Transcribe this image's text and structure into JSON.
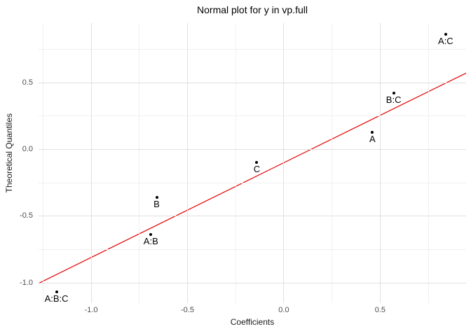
{
  "chart_data": {
    "type": "scatter",
    "title": "Normal plot for y in vp.full",
    "xlabel": "Coefficients",
    "ylabel": "Theoretical Quantiles",
    "xlim": [
      -1.273,
      0.946
    ],
    "ylim": [
      -1.152,
      0.946
    ],
    "grid": true,
    "legend": false,
    "x_axis": {
      "major_ticks": [
        -1.0,
        -0.5,
        0.0,
        0.5
      ],
      "major_tick_labels": [
        "-1.0",
        "-0.5",
        "0.0",
        "0.5"
      ],
      "minor_ticks": [
        -1.25,
        -0.75,
        -0.25,
        0.25,
        0.75
      ]
    },
    "y_axis": {
      "major_ticks": [
        -1.0,
        -0.5,
        0.0,
        0.5
      ],
      "major_tick_labels": [
        "-1.0",
        "-0.5",
        "0.0",
        "0.5"
      ],
      "minor_ticks": [
        -0.75,
        -0.25,
        0.25,
        0.75
      ]
    },
    "points": [
      {
        "label": "A:B:C",
        "x": -1.18,
        "y": -1.07
      },
      {
        "label": "A:B",
        "x": -0.69,
        "y": -0.64
      },
      {
        "label": "B",
        "x": -0.66,
        "y": -0.36
      },
      {
        "label": "C",
        "x": -0.14,
        "y": -0.1
      },
      {
        "label": "A",
        "x": 0.46,
        "y": 0.13
      },
      {
        "label": "B:C",
        "x": 0.57,
        "y": 0.42
      },
      {
        "label": "A:C",
        "x": 0.84,
        "y": 0.86
      }
    ],
    "reference_line": {
      "slope": 0.71,
      "intercept": -0.1,
      "color": "#E60000"
    },
    "point_color": "#000000"
  }
}
